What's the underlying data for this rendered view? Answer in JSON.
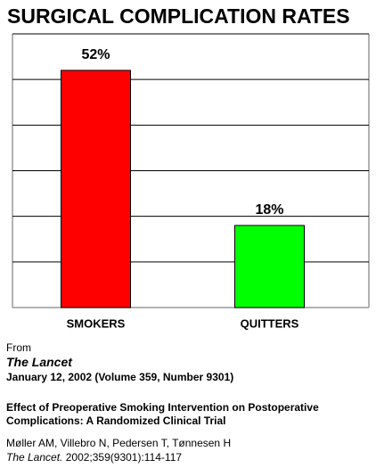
{
  "chart_data": {
    "type": "bar",
    "title": "SURGICAL COMPLICATION RATES",
    "categories": [
      "SMOKERS",
      "QUITTERS"
    ],
    "values": [
      52,
      18
    ],
    "value_labels": [
      "52%",
      "18%"
    ],
    "colors": [
      "#ff0000",
      "#00ff00"
    ],
    "ylim": [
      0,
      60
    ],
    "yticks": [
      0,
      10,
      20,
      30,
      40,
      50,
      60
    ],
    "grid": true
  },
  "source": {
    "prefix": "From",
    "journal": "The Lancet",
    "date": "January 12, 2002 (Volume 359, Number 9301)",
    "article_title": "Effect of Preoperative Smoking Intervention on Postoperative Complications: A Randomized Clinical Trial",
    "authors": "Møller AM, Villebro N, Pedersen T, Tønnesen H",
    "citation_journal": "The Lancet.",
    "citation_details": "2002;359(9301):114-117"
  }
}
